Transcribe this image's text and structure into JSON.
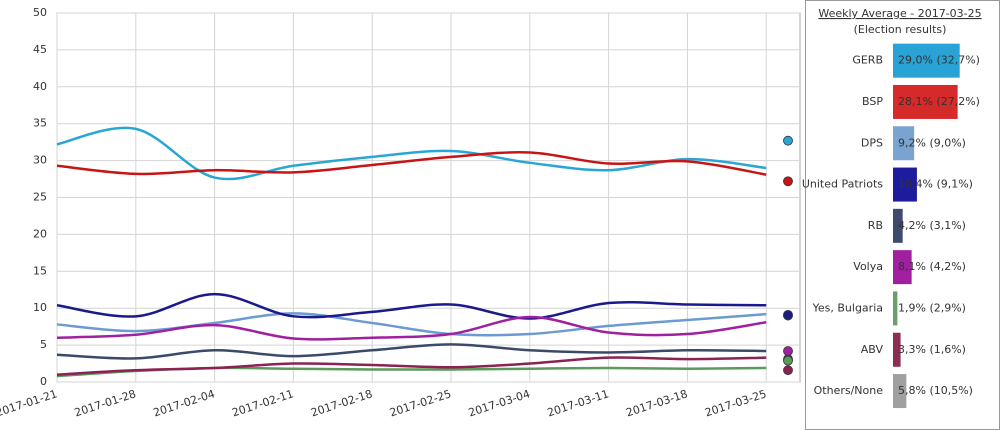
{
  "chart_data": [
    {
      "type": "line",
      "x": [
        "2017-01-21",
        "2017-01-28",
        "2017-02-04",
        "2017-02-11",
        "2017-02-18",
        "2017-02-25",
        "2017-03-04",
        "2017-03-11",
        "2017-03-18",
        "2017-03-25"
      ],
      "xlim": [
        "2017-01-21",
        "2017-03-28"
      ],
      "xticks": [
        "2017-01-21",
        "2017-01-28",
        "2017-02-04",
        "2017-02-11",
        "2017-02-18",
        "2017-02-25",
        "2017-03-04",
        "2017-03-11",
        "2017-03-18",
        "2017-03-25"
      ],
      "ylim": [
        0,
        50
      ],
      "yticks": [
        0,
        5,
        10,
        15,
        20,
        25,
        30,
        35,
        40,
        45,
        50
      ],
      "grid": true,
      "series": [
        {
          "name": "GERB",
          "color": "#2aa6d5",
          "values": [
            32.2,
            34.3,
            27.7,
            29.3,
            30.5,
            31.3,
            29.7,
            28.7,
            30.2,
            29.0
          ]
        },
        {
          "name": "BSP",
          "color": "#c81414",
          "values": [
            29.3,
            28.2,
            28.7,
            28.4,
            29.4,
            30.5,
            31.1,
            29.6,
            29.9,
            28.1
          ]
        },
        {
          "name": "DPS",
          "color": "#6b9bd1",
          "values": [
            7.8,
            6.9,
            8.0,
            9.3,
            8.0,
            6.5,
            6.5,
            7.6,
            8.4,
            9.2
          ]
        },
        {
          "name": "United Patriots",
          "color": "#1a1a8c",
          "values": [
            10.4,
            8.9,
            11.9,
            8.9,
            9.5,
            10.5,
            8.6,
            10.7,
            10.5,
            10.4
          ]
        },
        {
          "name": "RB",
          "color": "#3b4a6b",
          "values": [
            3.7,
            3.2,
            4.3,
            3.5,
            4.3,
            5.1,
            4.3,
            4.0,
            4.3,
            4.2
          ]
        },
        {
          "name": "Volya",
          "color": "#a020a0",
          "values": [
            6.0,
            6.4,
            7.7,
            5.9,
            6.0,
            6.5,
            8.8,
            6.7,
            6.5,
            8.1
          ]
        },
        {
          "name": "Yes, Bulgaria",
          "color": "#5a9a5a",
          "values": [
            0.8,
            1.5,
            1.9,
            1.8,
            1.7,
            1.7,
            1.8,
            1.9,
            1.8,
            1.9
          ]
        },
        {
          "name": "ABV",
          "color": "#8b2252",
          "values": [
            1.0,
            1.6,
            1.9,
            2.5,
            2.3,
            2.0,
            2.5,
            3.3,
            3.1,
            3.3
          ]
        }
      ]
    },
    {
      "type": "hbar",
      "title": "Weekly Average - 2017-03-25",
      "subtitle": "(Election results)",
      "categories": [
        "GERB",
        "BSP",
        "DPS",
        "United Patriots",
        "RB",
        "Volya",
        "Yes, Bulgaria",
        "ABV",
        "Others/None"
      ],
      "values": [
        29.0,
        28.1,
        9.2,
        10.4,
        4.2,
        8.1,
        1.9,
        3.3,
        5.8
      ],
      "results": [
        32.7,
        27.2,
        9.0,
        9.1,
        3.1,
        4.2,
        2.9,
        1.6,
        10.5
      ],
      "value_labels": [
        "29,0% (32,7%)",
        "28,1% (27,2%)",
        "9,2% (9,0%)",
        "10,4% (9,1%)",
        "4,2% (3,1%)",
        "8,1% (4,2%)",
        "1,9% (2,9%)",
        "3,3% (1,6%)",
        "5,8% (10,5%)"
      ],
      "colors": [
        "#29a3d6",
        "#d42a2a",
        "#7aa3d0",
        "#1c1c9c",
        "#3e4a6e",
        "#a020a0",
        "#6a9e6a",
        "#8b2e52",
        "#a0a0a0"
      ],
      "xlim": [
        0,
        30
      ]
    }
  ]
}
